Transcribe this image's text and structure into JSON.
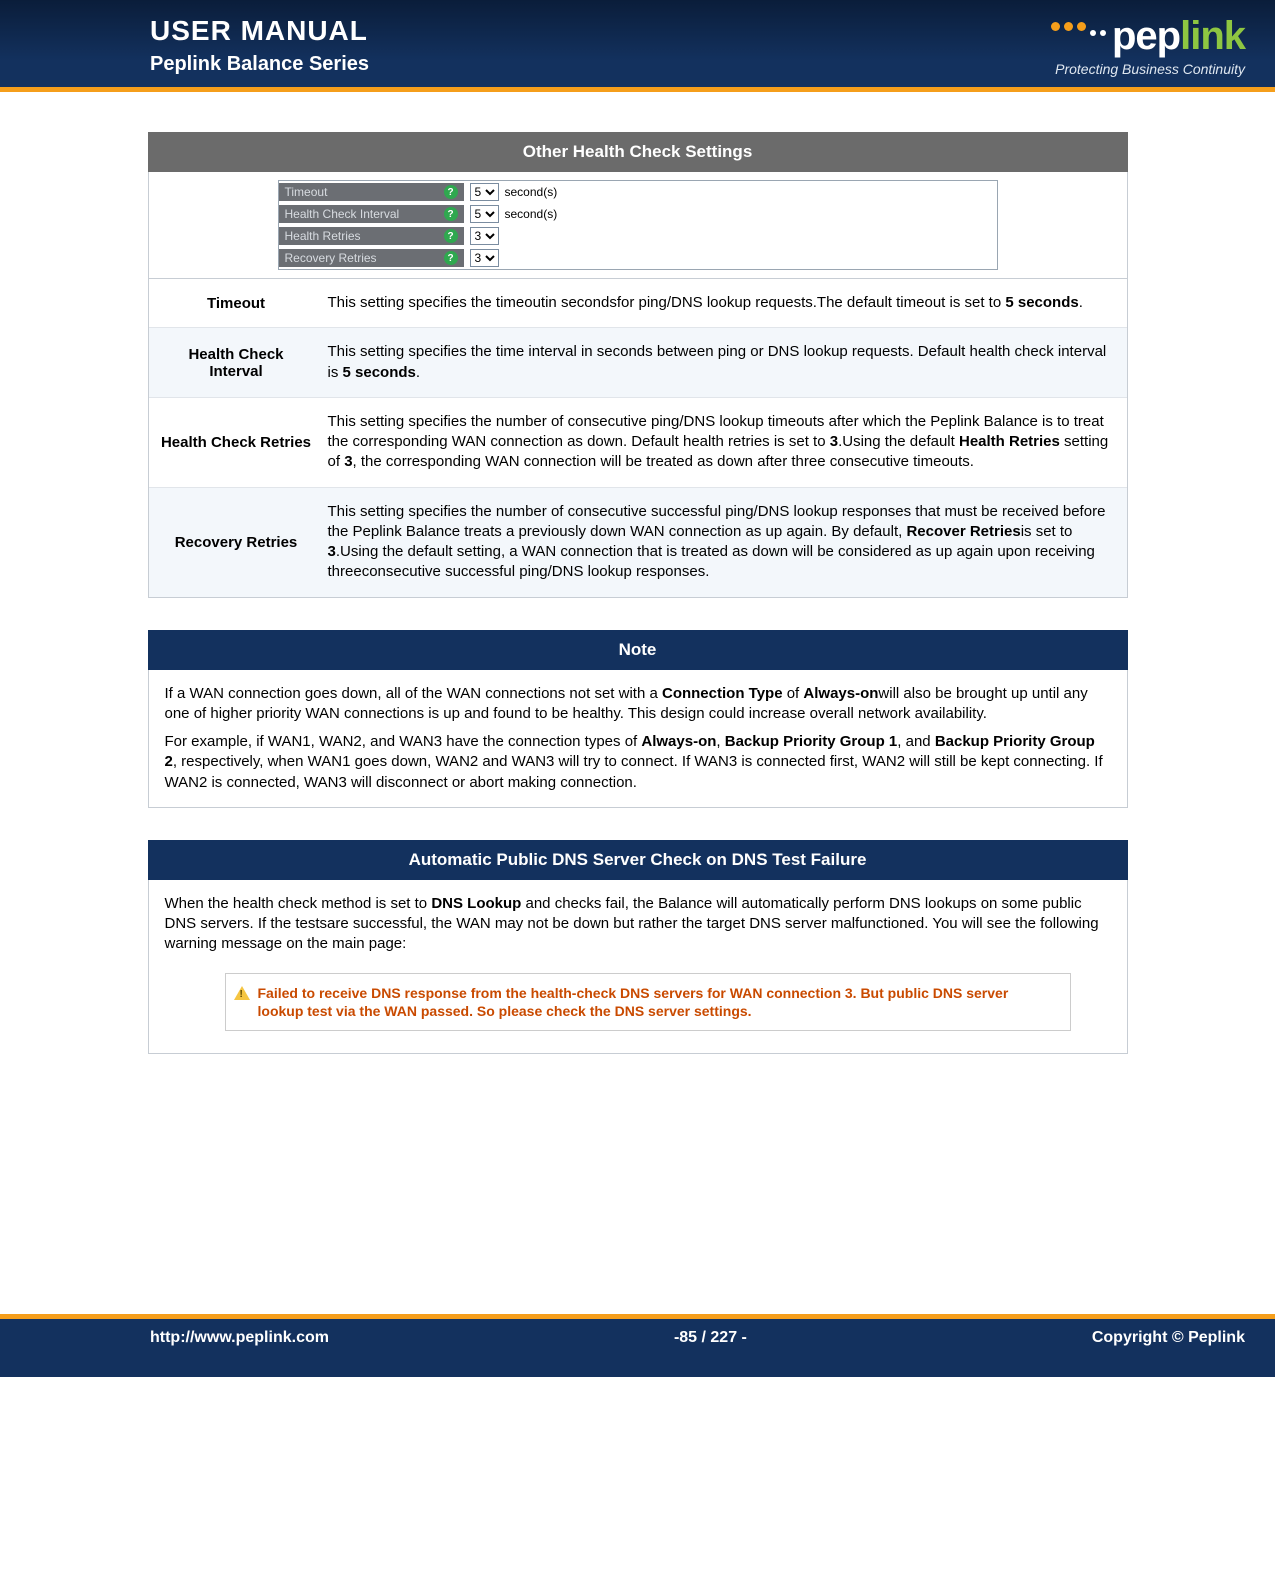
{
  "header": {
    "title1": "USER MANUAL",
    "title2": "Peplink Balance Series",
    "brand_prefix": "pep",
    "brand_suffix": "link",
    "tagline": "Protecting Business Continuity"
  },
  "section1": {
    "title": "Other Health Check Settings",
    "title_bg": "#6b6b6b",
    "rows": [
      {
        "label": "Timeout",
        "value": "5",
        "unit": "second(s)"
      },
      {
        "label": "Health Check Interval",
        "value": "5",
        "unit": "second(s)"
      },
      {
        "label": "Health Retries",
        "value": "3",
        "unit": ""
      },
      {
        "label": "Recovery Retries",
        "value": "3",
        "unit": ""
      }
    ],
    "defs": [
      {
        "term": "Timeout",
        "desc_html": "This setting specifies the timeoutin secondsfor ping/DNS lookup requests.The default timeout is set to <b>5 seconds</b>."
      },
      {
        "term": "Health Check Interval",
        "desc_html": "This setting specifies the time interval in seconds between ping or DNS lookup requests. Default health check interval is <b>5 seconds</b>."
      },
      {
        "term": "Health Check Retries",
        "desc_html": "This setting specifies the number of consecutive ping/DNS lookup timeouts after which the Peplink Balance is to treat the corresponding WAN connection as down. Default health retries is set to <b>3</b>.Using the default <b>Health Retries</b> setting of <b>3</b>, the corresponding WAN connection will be treated as down after three consecutive  timeouts."
      },
      {
        "term": "Recovery Retries",
        "desc_html": "This setting specifies the number of consecutive successful ping/DNS lookup responses that must be received before the Peplink Balance treats a previously down WAN connection as up again. By default, <b>Recover Retries</b>is set to <b>3</b>.Using the default setting, a WAN connection that is treated as down will be considered as up again upon receiving threeconsecutive successful ping/DNS lookup responses."
      }
    ]
  },
  "note": {
    "title": "Note",
    "title_bg": "#13315e",
    "p1_html": "If a WAN connection goes down, all of the WAN connections not set with a <b>Connection Type</b> of <b>Always-on</b>will also be brought up until any one of higher priority WAN connections is up and found to be healthy. This design could increase overall network availability.",
    "p2_html": "For example, if WAN1, WAN2, and WAN3 have the connection types of <b>Always-on</b>, <b>Backup Priority Group 1</b>, and <b>Backup Priority Group 2</b>, respectively, when WAN1 goes down, WAN2 and WAN3 will try to connect. If WAN3 is connected first, WAN2 will still be kept connecting. If WAN2 is connected, WAN3 will disconnect or abort making connection."
  },
  "dns": {
    "title": "Automatic Public DNS Server Check on DNS Test Failure",
    "title_bg": "#13315e",
    "body_html": "When the health check method is set to <b>DNS Lookup</b> and checks fail, the Balance will automatically perform DNS lookups on some public DNS servers. If the testsare successful, the WAN may not be down but rather the target DNS server malfunctioned. You will see the following warning message on the main page:",
    "warning": "Failed to receive DNS response from the health-check DNS servers for WAN connection 3. But public DNS server lookup test via the WAN passed. So please check the DNS server settings."
  },
  "footer": {
    "left": "http://www.peplink.com",
    "center": "-85 / 227 -",
    "right": "Copyright ©  Peplink"
  },
  "colors": {
    "header_bg_top": "#0a1d3a",
    "header_bg_bottom": "#13315e",
    "accent_orange": "#f59e1b",
    "accent_green": "#8ec641",
    "warn_text": "#c94a00"
  }
}
